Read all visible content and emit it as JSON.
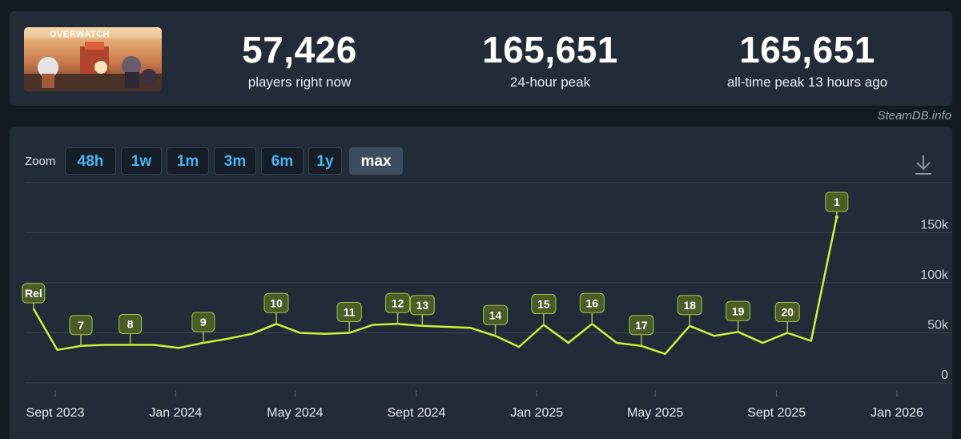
{
  "game": {
    "name": "OVERWATCH",
    "thumbnail_icon": "overwatch-game-thumbnail"
  },
  "stats": [
    {
      "value": "57,426",
      "label": "players right now"
    },
    {
      "value": "165,651",
      "label": "24-hour peak"
    },
    {
      "value": "165,651",
      "label": "all-time peak 13 hours ago"
    }
  ],
  "credit": "SteamDB.info",
  "zoom": {
    "label": "Zoom",
    "options": [
      "48h",
      "1w",
      "1m",
      "3m",
      "6m",
      "1y",
      "max"
    ],
    "selected": "max"
  },
  "colors": {
    "line": "#cdf03a",
    "flag_fill": "#4b5d27",
    "flag_border": "#a7c247",
    "grid": "#3a4552",
    "active_button": "#3d4c5e",
    "button_text": "#4cb4f0"
  },
  "chart_data": {
    "type": "line",
    "y_ticks": [
      "0",
      "50k",
      "100k",
      "150k"
    ],
    "ylim": [
      0,
      200000
    ],
    "x_ticks": [
      "Sept 2023",
      "Jan 2024",
      "May 2024",
      "Sept 2024",
      "Jan 2025",
      "May 2025",
      "Sept 2025",
      "Jan 2026"
    ],
    "series": [
      {
        "values": [
          [
            "2023-08-10",
            74000
          ],
          [
            "2023-09-03",
            33000
          ],
          [
            "2023-09-27",
            37000
          ],
          [
            "2023-10-22",
            38000
          ],
          [
            "2023-11-16",
            38000
          ],
          [
            "2023-12-10",
            38000
          ],
          [
            "2024-01-04",
            35000
          ],
          [
            "2024-01-29",
            40000
          ],
          [
            "2024-02-22",
            44000
          ],
          [
            "2024-03-18",
            49000
          ],
          [
            "2024-04-12",
            59000
          ],
          [
            "2024-05-06",
            50000
          ],
          [
            "2024-05-31",
            49000
          ],
          [
            "2024-06-25",
            50000
          ],
          [
            "2024-07-19",
            58000
          ],
          [
            "2024-08-13",
            59000
          ],
          [
            "2024-09-07",
            57000
          ],
          [
            "2024-10-01",
            56000
          ],
          [
            "2024-10-26",
            55000
          ],
          [
            "2024-11-20",
            47000
          ],
          [
            "2024-12-14",
            36000
          ],
          [
            "2025-01-08",
            58000
          ],
          [
            "2025-02-02",
            40000
          ],
          [
            "2025-02-26",
            59000
          ],
          [
            "2025-03-23",
            40000
          ],
          [
            "2025-04-17",
            37000
          ],
          [
            "2025-05-11",
            29000
          ],
          [
            "2025-06-05",
            57000
          ],
          [
            "2025-06-30",
            47000
          ],
          [
            "2025-07-24",
            51000
          ],
          [
            "2025-08-18",
            40000
          ],
          [
            "2025-09-12",
            50000
          ],
          [
            "2025-10-06",
            42000
          ],
          [
            "2025-11-01",
            165651
          ]
        ]
      }
    ],
    "annotations": [
      {
        "label": "Rel",
        "date": "2023-08-10",
        "value": 74000
      },
      {
        "label": "7",
        "date": "2023-09-27",
        "value": 37000
      },
      {
        "label": "8",
        "date": "2023-11-16",
        "value": 38000
      },
      {
        "label": "9",
        "date": "2024-01-29",
        "value": 40000
      },
      {
        "label": "10",
        "date": "2024-04-12",
        "value": 59000
      },
      {
        "label": "11",
        "date": "2024-06-25",
        "value": 50000
      },
      {
        "label": "12",
        "date": "2024-08-13",
        "value": 59000
      },
      {
        "label": "13",
        "date": "2024-09-07",
        "value": 57000
      },
      {
        "label": "14",
        "date": "2024-11-20",
        "value": 47000
      },
      {
        "label": "15",
        "date": "2025-01-08",
        "value": 58000
      },
      {
        "label": "16",
        "date": "2025-02-26",
        "value": 59000
      },
      {
        "label": "17",
        "date": "2025-04-17",
        "value": 37000
      },
      {
        "label": "18",
        "date": "2025-06-05",
        "value": 57000
      },
      {
        "label": "19",
        "date": "2025-07-24",
        "value": 51000
      },
      {
        "label": "20",
        "date": "2025-09-12",
        "value": 50000
      },
      {
        "label": "1",
        "date": "2025-11-01",
        "value": 165651
      }
    ]
  }
}
